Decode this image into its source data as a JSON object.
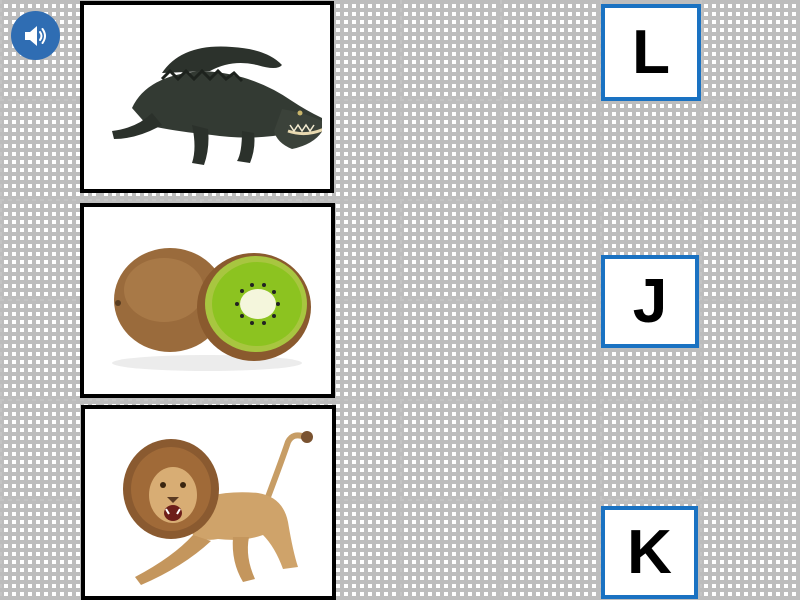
{
  "audio": {
    "icon": "speaker-icon",
    "color": "#2f6db3"
  },
  "cards": [
    {
      "name": "crocodile",
      "icon": "crocodile-image"
    },
    {
      "name": "kiwi",
      "icon": "kiwi-image"
    },
    {
      "name": "lion",
      "icon": "lion-image"
    }
  ],
  "letters": [
    "L",
    "J",
    "K"
  ],
  "colors": {
    "letter_border": "#1a72c2",
    "card_border": "#000000",
    "grid": "#c4c4c4"
  }
}
